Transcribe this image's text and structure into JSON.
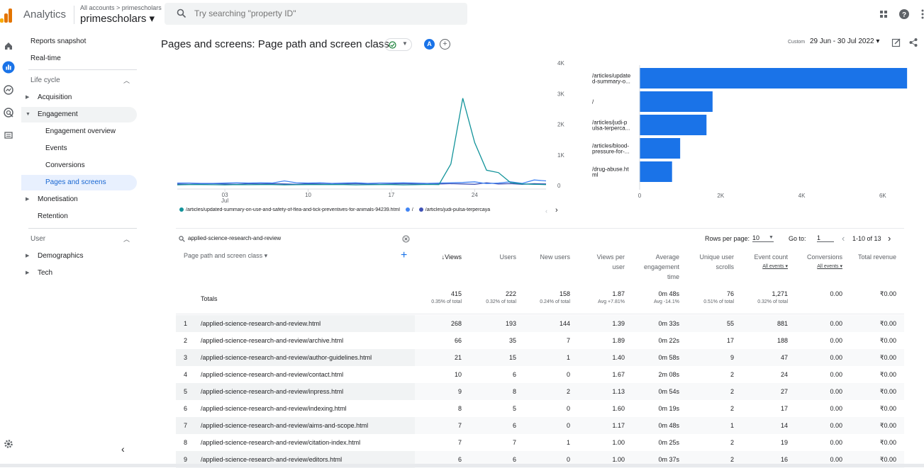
{
  "app": {
    "name": "Analytics",
    "account_crumb": "All accounts > primescholars",
    "account_name": "primescholars ▾",
    "search_placeholder": "Try searching \"property ID\""
  },
  "nav": {
    "items": [
      {
        "label": "Reports snapshot"
      },
      {
        "label": "Real-time"
      },
      {
        "label": "Life cycle"
      },
      {
        "label": "Acquisition"
      },
      {
        "label": "Engagement"
      },
      {
        "label": "Engagement overview"
      },
      {
        "label": "Events"
      },
      {
        "label": "Conversions"
      },
      {
        "label": "Pages and screens"
      },
      {
        "label": "Monetisation"
      },
      {
        "label": "Retention"
      },
      {
        "label": "User"
      },
      {
        "label": "Demographics"
      },
      {
        "label": "Tech"
      }
    ]
  },
  "header": {
    "title": "Pages and screens: Page path and screen class",
    "avatar_letter": "A",
    "custom_label": "Custom",
    "date_range": "29 Jun - 30 Jul 2022 ▾"
  },
  "chart_data": [
    {
      "type": "line",
      "x_tick_labels": [
        "03\nJul",
        "10",
        "17",
        "24"
      ],
      "y_tick_labels": [
        "4K",
        "3K",
        "2K",
        "1K",
        "0"
      ],
      "ylim": [
        0,
        4000
      ],
      "series": [
        {
          "name": "/articles/updated-summary-on-use-and-safety-of-flea-and-tick-preventives-for-animals-94239.html",
          "color": "#12939a",
          "values": [
            20,
            30,
            30,
            25,
            20,
            30,
            25,
            30,
            30,
            20,
            25,
            30,
            30,
            30,
            30,
            20,
            25,
            30,
            30,
            20,
            25,
            35,
            30,
            700,
            2850,
            1400,
            500,
            420,
            100,
            50,
            40,
            30
          ]
        },
        {
          "name": "/",
          "color": "#4285f4",
          "values": [
            80,
            80,
            70,
            70,
            80,
            90,
            80,
            90,
            80,
            150,
            90,
            80,
            90,
            70,
            80,
            90,
            70,
            80,
            80,
            90,
            80,
            70,
            80,
            90,
            100,
            120,
            60,
            80,
            120,
            70,
            180,
            150
          ]
        },
        {
          "name": "/articles/judi-pulsa-terpercaya",
          "color": "#3f51b5",
          "values": [
            50,
            40,
            50,
            60,
            50,
            40,
            60,
            50,
            60,
            50,
            40,
            60,
            50,
            40,
            50,
            60,
            50,
            40,
            50,
            60,
            50,
            40,
            50,
            60,
            50,
            40,
            90,
            50,
            60,
            40,
            60,
            50
          ]
        }
      ]
    },
    {
      "type": "bar",
      "orientation": "horizontal",
      "categories": [
        "/articles/update\nd-summary-o...",
        "/",
        "/articles/judi-p\nulsa-terperca...",
        "/articles/blood-\npressure-for-...",
        "/drug-abuse.ht\nml"
      ],
      "values": [
        6600,
        1800,
        1650,
        1000,
        800
      ],
      "x_tick_labels": [
        "0",
        "2K",
        "4K",
        "6K"
      ],
      "xlim": [
        0,
        7000
      ],
      "color": "#1a73e8"
    }
  ],
  "legend": [
    {
      "label": "/articles/updated-summary-on-use-and-safety-of-flea-and-tick-preventives-for-animals-94239.html",
      "color": "#12939a"
    },
    {
      "label": "/",
      "color": "#4285f4"
    },
    {
      "label": "/articles/judi-pulsa-terpercaya",
      "color": "#3f51b5"
    }
  ],
  "table": {
    "search_value": "applied-science-research-and-review",
    "rows_per_page_label": "Rows per page:",
    "rows_per_page": "10",
    "goto_label": "Go to:",
    "goto_value": "1",
    "range": "1-10 of 13",
    "dimension_header": "Page path and screen class ▾",
    "headers": [
      {
        "label": "↓Views"
      },
      {
        "label": "Users"
      },
      {
        "label": "New users"
      },
      {
        "label": "Views per\nuser"
      },
      {
        "label": "Average\nengagement\ntime"
      },
      {
        "label": "Unique user\nscrolls"
      },
      {
        "label": "Event count",
        "sub": "All events ▾"
      },
      {
        "label": "Conversions",
        "sub": "All events ▾"
      },
      {
        "label": "Total revenue"
      }
    ],
    "totals_label": "Totals",
    "totals": [
      {
        "big": "415",
        "small": "0.35% of total"
      },
      {
        "big": "222",
        "small": "0.32% of total"
      },
      {
        "big": "158",
        "small": "0.24% of total"
      },
      {
        "big": "1.87",
        "small": "Avg +7.81%"
      },
      {
        "big": "0m 48s",
        "small": "Avg -14.1%"
      },
      {
        "big": "76",
        "small": "0.51% of total"
      },
      {
        "big": "1,271",
        "small": "0.32% of total"
      },
      {
        "big": "0.00",
        "small": ""
      },
      {
        "big": "₹0.00",
        "small": ""
      }
    ],
    "rows": [
      {
        "n": "1",
        "path": "/applied-science-research-and-review.html",
        "v": [
          "268",
          "193",
          "144",
          "1.39",
          "0m 33s",
          "55",
          "881",
          "0.00",
          "₹0.00"
        ]
      },
      {
        "n": "2",
        "path": "/applied-science-research-and-review/archive.html",
        "v": [
          "66",
          "35",
          "7",
          "1.89",
          "0m 22s",
          "17",
          "188",
          "0.00",
          "₹0.00"
        ]
      },
      {
        "n": "3",
        "path": "/applied-science-research-and-review/author-guidelines.html",
        "v": [
          "21",
          "15",
          "1",
          "1.40",
          "0m 58s",
          "9",
          "47",
          "0.00",
          "₹0.00"
        ]
      },
      {
        "n": "4",
        "path": "/applied-science-research-and-review/contact.html",
        "v": [
          "10",
          "6",
          "0",
          "1.67",
          "2m 08s",
          "2",
          "24",
          "0.00",
          "₹0.00"
        ]
      },
      {
        "n": "5",
        "path": "/applied-science-research-and-review/inpress.html",
        "v": [
          "9",
          "8",
          "2",
          "1.13",
          "0m 54s",
          "2",
          "27",
          "0.00",
          "₹0.00"
        ]
      },
      {
        "n": "6",
        "path": "/applied-science-research-and-review/indexing.html",
        "v": [
          "8",
          "5",
          "0",
          "1.60",
          "0m 19s",
          "2",
          "17",
          "0.00",
          "₹0.00"
        ]
      },
      {
        "n": "7",
        "path": "/applied-science-research-and-review/aims-and-scope.html",
        "v": [
          "7",
          "6",
          "0",
          "1.17",
          "0m 48s",
          "1",
          "14",
          "0.00",
          "₹0.00"
        ]
      },
      {
        "n": "8",
        "path": "/applied-science-research-and-review/citation-index.html",
        "v": [
          "7",
          "7",
          "1",
          "1.00",
          "0m 25s",
          "2",
          "19",
          "0.00",
          "₹0.00"
        ]
      },
      {
        "n": "9",
        "path": "/applied-science-research-and-review/editors.html",
        "v": [
          "6",
          "6",
          "0",
          "1.00",
          "0m 37s",
          "2",
          "16",
          "0.00",
          "₹0.00"
        ]
      }
    ]
  }
}
